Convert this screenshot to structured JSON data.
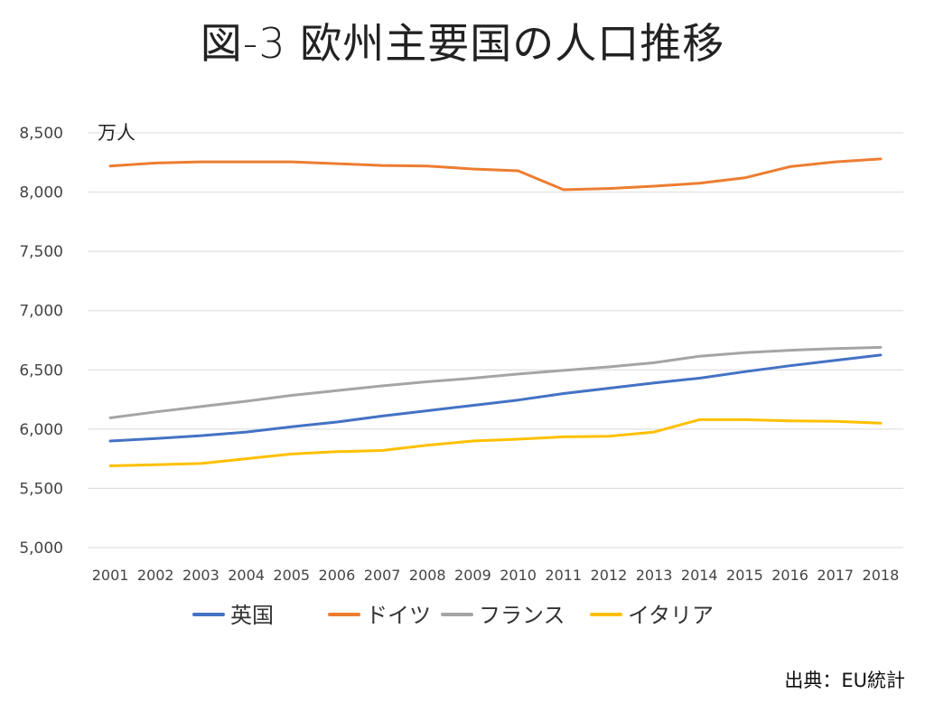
{
  "title": "図-3 欧州主要国の人口推移",
  "source": "出典：EU統計",
  "chart_data": {
    "type": "line",
    "unit_label": "万人",
    "x": [
      2001,
      2002,
      2003,
      2004,
      2005,
      2006,
      2007,
      2008,
      2009,
      2010,
      2011,
      2012,
      2013,
      2014,
      2015,
      2016,
      2017,
      2018
    ],
    "ylim": [
      5000,
      8500
    ],
    "yticks": [
      5000,
      5500,
      6000,
      6500,
      7000,
      7500,
      8000,
      8500
    ],
    "ytick_labels": [
      "5,000",
      "5,500",
      "6,000",
      "6,500",
      "7,000",
      "7,500",
      "8,000",
      "8,500"
    ],
    "grid": true,
    "legend_position": "bottom",
    "series": [
      {
        "name": "英国",
        "color": "#4472C4",
        "values": [
          5900,
          5920,
          5945,
          5975,
          6020,
          6060,
          6110,
          6155,
          6200,
          6245,
          6300,
          6345,
          6390,
          6430,
          6485,
          6535,
          6580,
          6625
        ]
      },
      {
        "name": "ドイツ",
        "color": "#ED7D31",
        "values": [
          8220,
          8245,
          8255,
          8255,
          8255,
          8240,
          8225,
          8220,
          8195,
          8180,
          8020,
          8030,
          8050,
          8075,
          8120,
          8215,
          8255,
          8280
        ]
      },
      {
        "name": "フランス",
        "color": "#A5A5A5",
        "values": [
          6095,
          6145,
          6190,
          6235,
          6285,
          6325,
          6365,
          6400,
          6430,
          6465,
          6495,
          6525,
          6560,
          6615,
          6645,
          6665,
          6680,
          6690
        ]
      },
      {
        "name": "イタリア",
        "color": "#FFC000",
        "values": [
          5690,
          5700,
          5710,
          5750,
          5790,
          5810,
          5820,
          5865,
          5900,
          5915,
          5935,
          5940,
          5975,
          6080,
          6080,
          6070,
          6065,
          6050
        ]
      }
    ]
  }
}
